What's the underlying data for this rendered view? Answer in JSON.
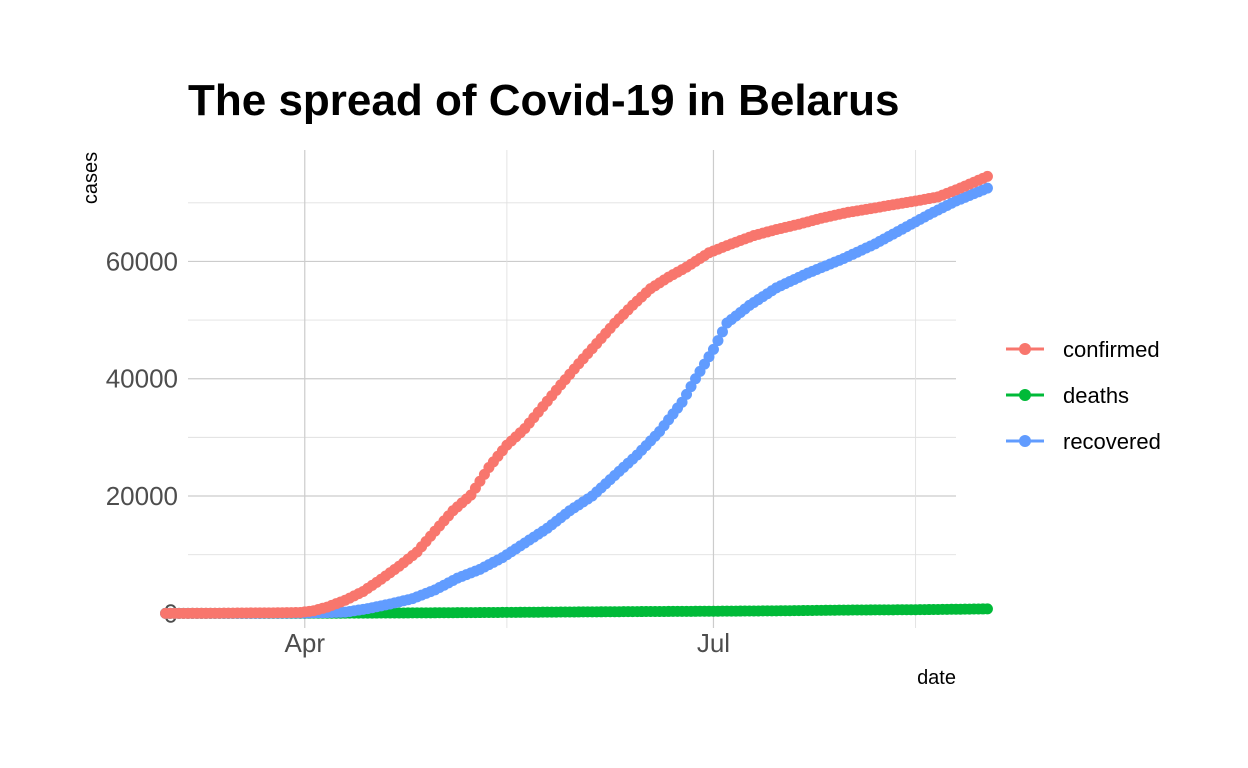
{
  "chart_data": {
    "type": "line",
    "title": "The spread of Covid-19 in Belarus",
    "xlabel": "date",
    "ylabel": "cases",
    "x_axis_type": "date",
    "x_range": [
      "2020-03-06",
      "2020-08-24"
    ],
    "x_ticks": [
      {
        "date": "2020-04-01",
        "label": "Apr"
      },
      {
        "date": "2020-07-01",
        "label": "Jul"
      }
    ],
    "x_minor_ticks": [
      "2020-05-16",
      "2020-08-15"
    ],
    "ylim": [
      -2500,
      79000
    ],
    "y_ticks": [
      0,
      20000,
      40000,
      60000
    ],
    "y_tick_labels": [
      "0",
      "20000",
      "40000",
      "60000"
    ],
    "y_minor_ticks": [
      10000,
      30000,
      50000,
      70000
    ],
    "grid": true,
    "legend_position": "right",
    "series": [
      {
        "name": "confirmed",
        "color": "#F8766D",
        "points": [
          [
            "2020-03-01",
            1
          ],
          [
            "2020-03-10",
            6
          ],
          [
            "2020-03-20",
            69
          ],
          [
            "2020-03-25",
            86
          ],
          [
            "2020-03-31",
            152
          ],
          [
            "2020-04-03",
            440
          ],
          [
            "2020-04-06",
            1066
          ],
          [
            "2020-04-10",
            2226
          ],
          [
            "2020-04-14",
            3728
          ],
          [
            "2020-04-18",
            5807
          ],
          [
            "2020-04-22",
            8022
          ],
          [
            "2020-04-26",
            10463
          ],
          [
            "2020-04-30",
            14027
          ],
          [
            "2020-05-04",
            17489
          ],
          [
            "2020-05-08",
            20168
          ],
          [
            "2020-05-12",
            24873
          ],
          [
            "2020-05-16",
            28681
          ],
          [
            "2020-05-20",
            31508
          ],
          [
            "2020-05-24",
            35244
          ],
          [
            "2020-05-28",
            38956
          ],
          [
            "2020-06-01",
            42556
          ],
          [
            "2020-06-05",
            46000
          ],
          [
            "2020-06-09",
            49453
          ],
          [
            "2020-06-13",
            52520
          ],
          [
            "2020-06-17",
            55369
          ],
          [
            "2020-06-21",
            57333
          ],
          [
            "2020-06-25",
            59023
          ],
          [
            "2020-06-30",
            61475
          ],
          [
            "2020-07-05",
            63000
          ],
          [
            "2020-07-10",
            64411
          ],
          [
            "2020-07-15",
            65443
          ],
          [
            "2020-07-20",
            66348
          ],
          [
            "2020-07-25",
            67366
          ],
          [
            "2020-07-31",
            68376
          ],
          [
            "2020-08-05",
            69000
          ],
          [
            "2020-08-10",
            69673
          ],
          [
            "2020-08-15",
            70300
          ],
          [
            "2020-08-20",
            71000
          ],
          [
            "2020-08-24",
            72200
          ],
          [
            "2020-08-28",
            73500
          ],
          [
            "2020-08-31",
            74500
          ]
        ]
      },
      {
        "name": "deaths",
        "color": "#00BA38",
        "points": [
          [
            "2020-03-01",
            0
          ],
          [
            "2020-03-31",
            0
          ],
          [
            "2020-04-15",
            40
          ],
          [
            "2020-05-01",
            93
          ],
          [
            "2020-05-15",
            157
          ],
          [
            "2020-06-01",
            240
          ],
          [
            "2020-06-15",
            303
          ],
          [
            "2020-07-01",
            362
          ],
          [
            "2020-07-15",
            426
          ],
          [
            "2020-08-01",
            565
          ],
          [
            "2020-08-15",
            620
          ],
          [
            "2020-08-31",
            760
          ]
        ]
      },
      {
        "name": "recovered",
        "color": "#619CFF",
        "points": [
          [
            "2020-03-01",
            0
          ],
          [
            "2020-03-20",
            0
          ],
          [
            "2020-04-01",
            40
          ],
          [
            "2020-04-10",
            200
          ],
          [
            "2020-04-15",
            800
          ],
          [
            "2020-04-20",
            1600
          ],
          [
            "2020-04-25",
            2500
          ],
          [
            "2020-04-30",
            4000
          ],
          [
            "2020-05-05",
            6000
          ],
          [
            "2020-05-10",
            7500
          ],
          [
            "2020-05-15",
            9500
          ],
          [
            "2020-05-20",
            12000
          ],
          [
            "2020-05-25",
            14500
          ],
          [
            "2020-05-30",
            17500
          ],
          [
            "2020-06-04",
            20000
          ],
          [
            "2020-06-09",
            23500
          ],
          [
            "2020-06-14",
            27000
          ],
          [
            "2020-06-19",
            31000
          ],
          [
            "2020-06-24",
            36000
          ],
          [
            "2020-06-27",
            40000
          ],
          [
            "2020-07-01",
            45000
          ],
          [
            "2020-07-04",
            49500
          ],
          [
            "2020-07-09",
            52500
          ],
          [
            "2020-07-15",
            55500
          ],
          [
            "2020-07-22",
            58000
          ],
          [
            "2020-07-30",
            60500
          ],
          [
            "2020-08-06",
            63000
          ],
          [
            "2020-08-12",
            65500
          ],
          [
            "2020-08-18",
            68000
          ],
          [
            "2020-08-24",
            70300
          ],
          [
            "2020-08-31",
            72500
          ]
        ]
      }
    ]
  }
}
